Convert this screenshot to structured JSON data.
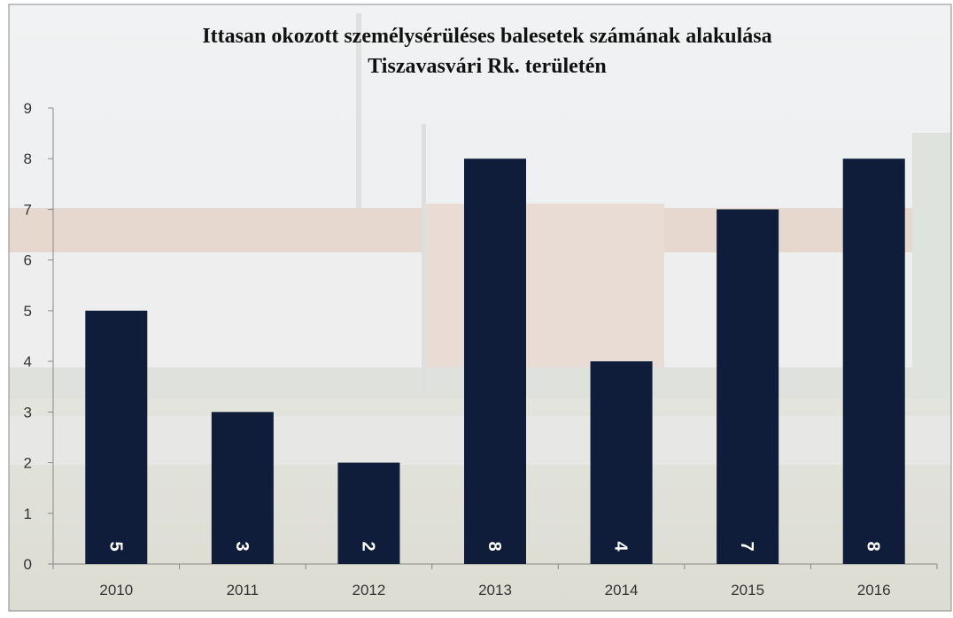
{
  "chart_data": {
    "type": "bar",
    "title": [
      "Ittasan okozott személysérüléses balesetek számának alakulása",
      "Tiszavasvári Rk. területén"
    ],
    "categories": [
      "2010",
      "2011",
      "2012",
      "2013",
      "2014",
      "2015",
      "2016"
    ],
    "values": [
      5,
      3,
      2,
      8,
      4,
      7,
      8
    ],
    "color": "#0f1d3b",
    "ylim": [
      0,
      9
    ],
    "yticks": [
      0,
      1,
      2,
      3,
      4,
      5,
      6,
      7,
      8,
      9
    ],
    "grid": false
  }
}
